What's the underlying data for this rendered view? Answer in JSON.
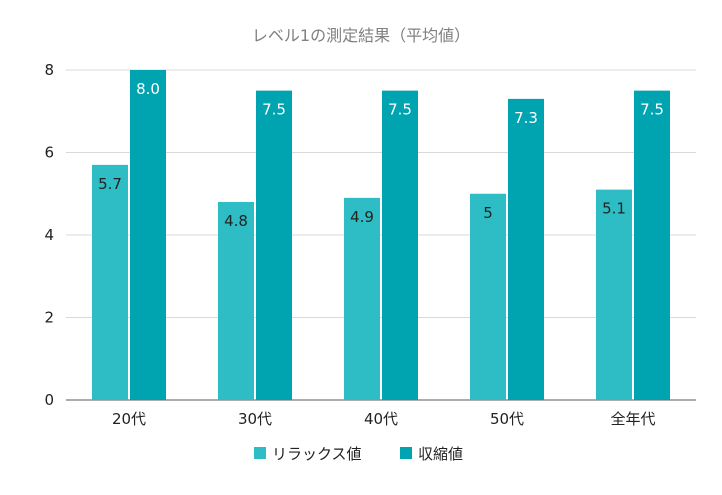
{
  "chart_data": {
    "type": "bar",
    "title": "レベル1の測定結果（平均値）",
    "xlabel": "",
    "ylabel": "",
    "categories": [
      "20代",
      "30代",
      "40代",
      "50代",
      "全年代"
    ],
    "series": [
      {
        "name": "リラックス値",
        "values": [
          5.7,
          4.8,
          4.9,
          5.0,
          5.1
        ],
        "labels": [
          "5.7",
          "4.8",
          "4.9",
          "5",
          "5.1"
        ],
        "color": "#2ebdc4"
      },
      {
        "name": "収縮値",
        "values": [
          8.0,
          7.5,
          7.5,
          7.3,
          7.5
        ],
        "labels": [
          "8.0",
          "7.5",
          "7.5",
          "7.3",
          "7.5"
        ],
        "color": "#00a3b0"
      }
    ],
    "ylim": [
      0,
      8
    ],
    "yticks": [
      "0",
      "2",
      "4",
      "6",
      "8"
    ],
    "grid": true,
    "legend_position": "bottom",
    "colors": {
      "grid": "#d9d9d9",
      "axis": "#595959",
      "title": "#808080",
      "label_outside": "#ffffff",
      "label_inside": "#222222"
    }
  }
}
